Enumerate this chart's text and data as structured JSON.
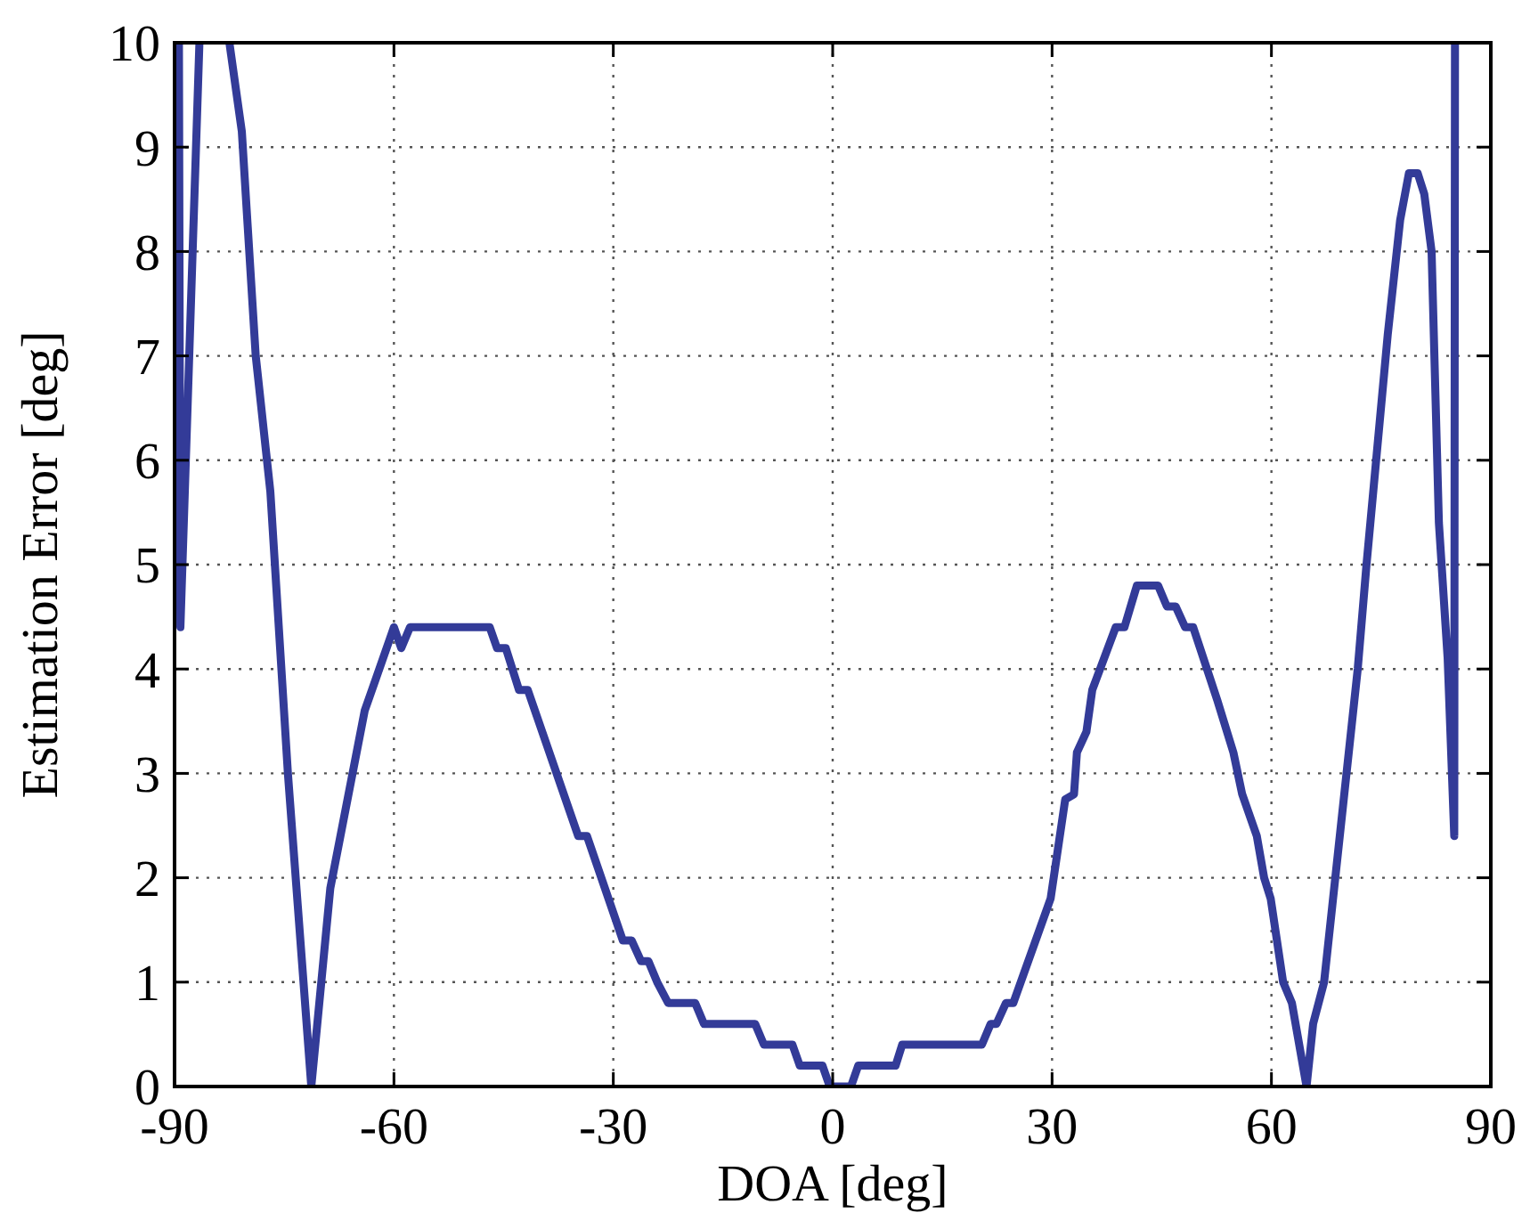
{
  "chart_data": {
    "type": "line",
    "xlabel": "DOA [deg]",
    "ylabel": "Estimation Error [deg]",
    "xlim": [
      -90,
      90
    ],
    "ylim": [
      0,
      10
    ],
    "xticks": [
      -90,
      -60,
      -30,
      0,
      30,
      60,
      90
    ],
    "yticks": [
      0,
      1,
      2,
      3,
      4,
      5,
      6,
      7,
      8,
      9,
      10
    ],
    "grid": true,
    "line_style": "solid",
    "marker": "none",
    "series": [
      {
        "color": "#333b98",
        "x": [
          -89.4,
          -89.2,
          -86.6,
          -84.5,
          -82.5,
          -80.8,
          -78.9,
          -76.9,
          -74.5,
          -71.3,
          -68.7,
          -64.0,
          -60.0,
          -59.0,
          -57.8,
          -46.9,
          -45.9,
          -44.7,
          -42.9,
          -41.7,
          -34.8,
          -33.6,
          -28.7,
          -27.5,
          -26.2,
          -25.2,
          -24.0,
          -22.5,
          -18.8,
          -17.6,
          -10.6,
          -9.4,
          -5.5,
          -4.5,
          -1.4,
          -0.4,
          2.5,
          3.5,
          8.6,
          9.5,
          20.4,
          21.6,
          22.4,
          23.7,
          24.7,
          29.8,
          31.8,
          33.0,
          33.4,
          34.7,
          35.5,
          38.7,
          39.9,
          41.6,
          44.5,
          45.7,
          46.9,
          48.2,
          49.3,
          52.6,
          54.8,
          56.0,
          58.0,
          59.0,
          59.9,
          61.6,
          62.8,
          64.8,
          65.7,
          67.2,
          71.8,
          73.0,
          75.9,
          77.6,
          78.8,
          80.0,
          80.9,
          81.9,
          82.9,
          84.1,
          85.0,
          85.1
        ],
        "values": [
          10,
          4.4,
          10,
          null,
          10,
          9.15,
          7.0,
          5.7,
          3.0,
          0,
          1.9,
          3.6,
          4.4,
          4.2,
          4.4,
          4.4,
          4.2,
          4.2,
          3.8,
          3.8,
          2.4,
          2.4,
          1.4,
          1.4,
          1.2,
          1.2,
          1.0,
          0.8,
          0.8,
          0.6,
          0.6,
          0.4,
          0.4,
          0.2,
          0.2,
          0,
          0,
          0.2,
          0.2,
          0.4,
          0.4,
          0.6,
          0.6,
          0.8,
          0.8,
          1.8,
          2.75,
          2.8,
          3.2,
          3.4,
          3.8,
          4.4,
          4.4,
          4.8,
          4.8,
          4.6,
          4.6,
          4.4,
          4.4,
          3.7,
          3.2,
          2.8,
          2.4,
          2.0,
          1.8,
          1.0,
          0.8,
          0,
          0.6,
          1.0,
          4.0,
          5.0,
          7.2,
          8.3,
          8.75,
          8.75,
          8.55,
          8.0,
          5.4,
          4.1,
          2.4,
          10
        ]
      }
    ]
  }
}
